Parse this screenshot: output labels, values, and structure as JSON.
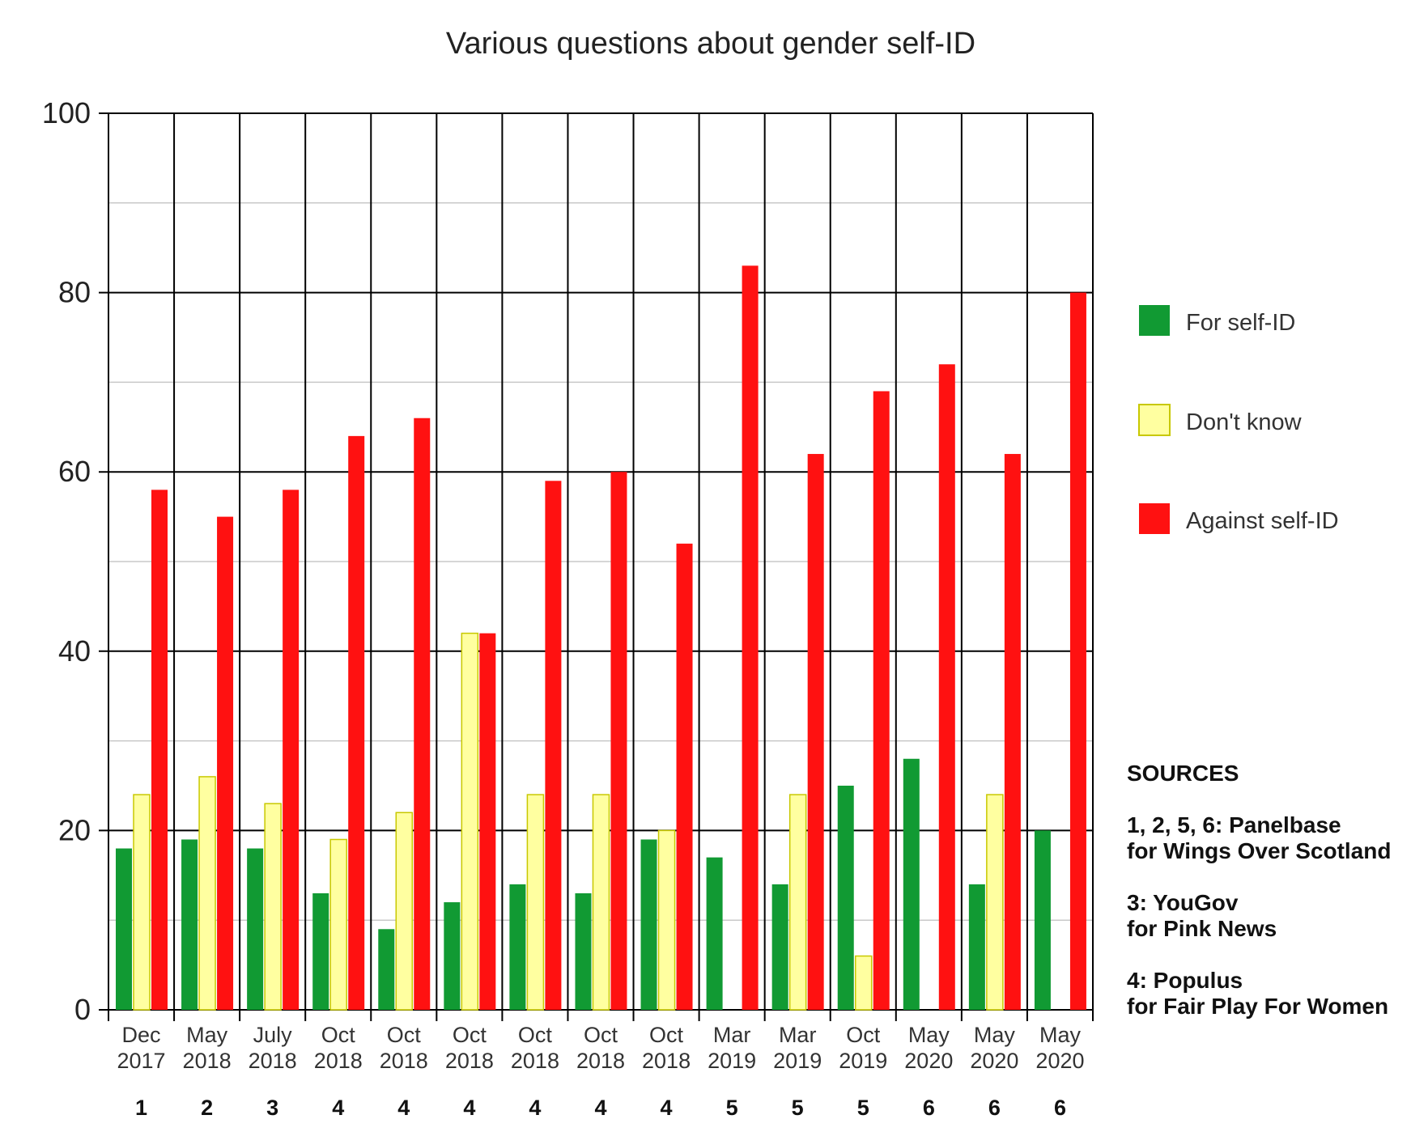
{
  "chart_data": {
    "type": "bar",
    "title": "Various questions about gender self-ID",
    "xlabel": "",
    "ylabel": "",
    "ylim": [
      0,
      100
    ],
    "yticks": [
      0,
      20,
      40,
      60,
      80,
      100
    ],
    "grid": true,
    "legend_position": "right",
    "categories": [
      {
        "month": "Dec",
        "year": "2017",
        "source": "1"
      },
      {
        "month": "May",
        "year": "2018",
        "source": "2"
      },
      {
        "month": "July",
        "year": "2018",
        "source": "3"
      },
      {
        "month": "Oct",
        "year": "2018",
        "source": "4"
      },
      {
        "month": "Oct",
        "year": "2018",
        "source": "4"
      },
      {
        "month": "Oct",
        "year": "2018",
        "source": "4"
      },
      {
        "month": "Oct",
        "year": "2018",
        "source": "4"
      },
      {
        "month": "Oct",
        "year": "2018",
        "source": "4"
      },
      {
        "month": "Oct",
        "year": "2018",
        "source": "4"
      },
      {
        "month": "Mar",
        "year": "2019",
        "source": "5"
      },
      {
        "month": "Mar",
        "year": "2019",
        "source": "5"
      },
      {
        "month": "Oct",
        "year": "2019",
        "source": "5"
      },
      {
        "month": "May",
        "year": "2020",
        "source": "6"
      },
      {
        "month": "May",
        "year": "2020",
        "source": "6"
      },
      {
        "month": "May",
        "year": "2020",
        "source": "6"
      }
    ],
    "series": [
      {
        "name": "For self-ID",
        "color": "#119a33",
        "values": [
          18,
          19,
          18,
          13,
          9,
          12,
          14,
          13,
          19,
          17,
          14,
          25,
          28,
          14,
          20
        ]
      },
      {
        "name": "Don't know",
        "color": "#ffffa0",
        "values": [
          24,
          26,
          23,
          19,
          22,
          42,
          24,
          24,
          20,
          null,
          24,
          6,
          null,
          24,
          null
        ]
      },
      {
        "name": "Against self-ID",
        "color": "#ff1111",
        "values": [
          58,
          55,
          58,
          64,
          66,
          42,
          59,
          60,
          52,
          83,
          62,
          69,
          72,
          62,
          80
        ]
      }
    ]
  },
  "sources": {
    "title": "SOURCES",
    "entries": [
      {
        "line1": "1, 2, 5, 6: Panelbase",
        "line2": "for Wings Over Scotland"
      },
      {
        "line1": "3: YouGov",
        "line2": "for Pink News"
      },
      {
        "line1": "4: Populus",
        "line2": "for Fair Play For Women"
      }
    ]
  }
}
